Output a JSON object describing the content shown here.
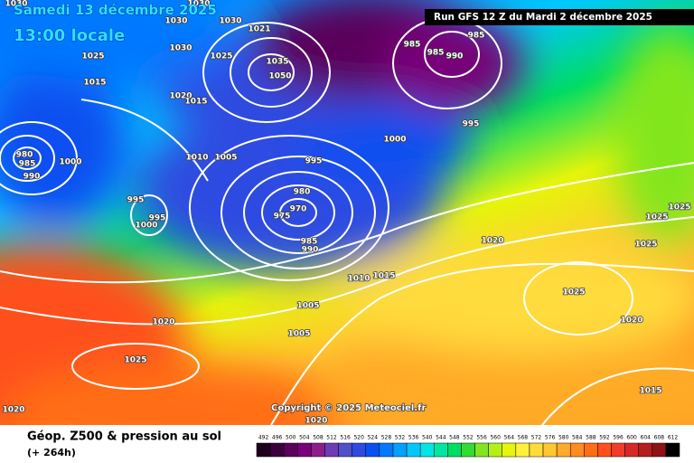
{
  "header": {
    "date": "Samedi 13 décembre 2025",
    "time": "13:00 locale",
    "run": "Run GFS 12 Z du Mardi 2 décembre 2025"
  },
  "map": {
    "isobar_labels": [
      "1030",
      "1030",
      "1030",
      "1030",
      "1030",
      "1025",
      "1025",
      "1020",
      "1015",
      "1015",
      "1010",
      "1005",
      "1000",
      "995",
      "995",
      "995",
      "995",
      "1000",
      "980",
      "985",
      "990",
      "1000",
      "985",
      "985",
      "985",
      "990",
      "980",
      "970",
      "975",
      "985",
      "990",
      "1020",
      "1025",
      "1025",
      "1025",
      "1025",
      "1020",
      "1015",
      "1020",
      "1025",
      "1020",
      "1020",
      "1005",
      "1005",
      "1010",
      "1015",
      "1050",
      "1035",
      "1021"
    ],
    "copyright": "Copyright © 2025 Meteociel.fr"
  },
  "footer": {
    "title": "Géop. Z500 & pression au sol",
    "lead": "(+ 264h)"
  },
  "legend": {
    "labels": [
      "492",
      "496",
      "500",
      "504",
      "508",
      "512",
      "516",
      "520",
      "524",
      "528",
      "532",
      "536",
      "540",
      "544",
      "548",
      "552",
      "556",
      "560",
      "564",
      "568",
      "572",
      "576",
      "580",
      "584",
      "588",
      "592",
      "596",
      "600",
      "604",
      "608",
      "612"
    ],
    "colors": [
      "#1e001e",
      "#3c003c",
      "#5a005a",
      "#780078",
      "#8c1e8c",
      "#6e3cb4",
      "#5050c8",
      "#2d4be1",
      "#0a50f0",
      "#0078ff",
      "#00a0ff",
      "#00c8ff",
      "#00e6e6",
      "#00e6a0",
      "#00dc64",
      "#32dc32",
      "#82e61e",
      "#b4f014",
      "#e6f50a",
      "#fff03c",
      "#ffdc3c",
      "#ffc832",
      "#ffaa28",
      "#ff8c1e",
      "#ff6e14",
      "#ff501e",
      "#f03c28",
      "#d72828",
      "#b41e1e",
      "#8c1414",
      "#000000"
    ]
  }
}
